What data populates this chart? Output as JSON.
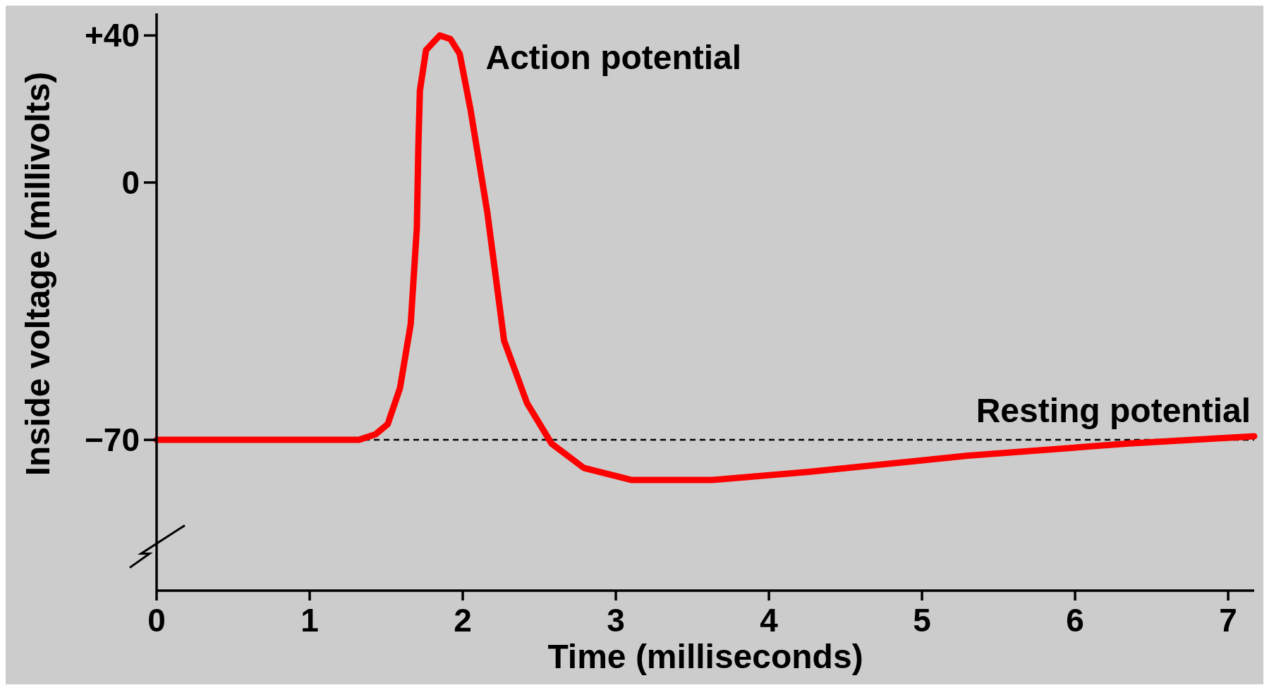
{
  "chart_data": {
    "type": "line",
    "xlabel": "Time (milliseconds)",
    "ylabel": "Inside voltage (millivolts)",
    "xlim": [
      0,
      7.17
    ],
    "ylim": [
      -111,
      46
    ],
    "xticks": [
      0,
      1,
      2,
      3,
      4,
      5,
      6,
      7
    ],
    "yticks": [
      {
        "value": 40,
        "label": "+40"
      },
      0,
      {
        "value": -70,
        "label": "−70"
      }
    ],
    "grid": false,
    "marker": "none",
    "line_style": "solid",
    "series": [
      {
        "color": "#ff0000",
        "x": [
          0,
          1.32,
          1.43,
          1.51,
          1.59,
          1.66,
          1.7,
          1.71,
          1.72,
          1.76,
          1.85,
          1.92,
          1.98,
          2.05,
          2.16,
          2.27,
          2.42,
          2.58,
          2.79,
          3.1,
          3.63,
          4.26,
          5.3,
          6.35,
          7.17
        ],
        "values": [
          -70,
          -70,
          -68.5,
          -65.7,
          -55.9,
          -38.5,
          -12.4,
          10,
          25,
          36,
          40,
          39,
          35,
          20,
          -8,
          -43,
          -60,
          -71,
          -77.6,
          -80.9,
          -80.9,
          -78.7,
          -74.3,
          -71,
          -69
        ]
      }
    ],
    "ref_lines": [
      {
        "axis": "y",
        "value": -70,
        "label": "Resting potential",
        "color": "#000000",
        "line_style": "dashed"
      }
    ],
    "annotations": [
      {
        "text": "Action potential",
        "x": 1.85,
        "y": 40
      }
    ]
  }
}
